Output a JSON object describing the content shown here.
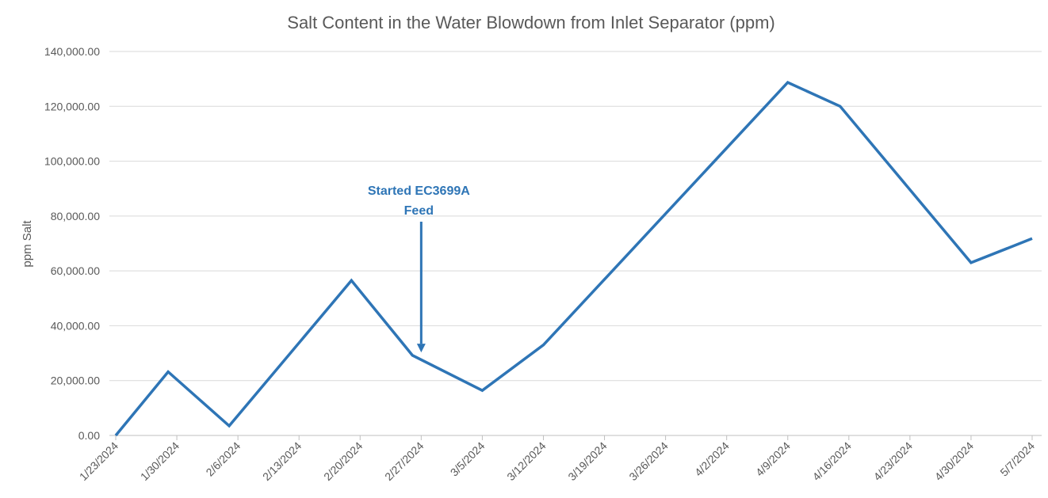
{
  "chart_data": {
    "type": "line",
    "title": "Salt Content in the Water Blowdown from Inlet Separator (ppm)",
    "xlabel": "",
    "ylabel": "ppm Salt",
    "ylim": [
      0,
      140000
    ],
    "y_ticks": [
      "0.00",
      "20,000.00",
      "40,000.00",
      "60,000.00",
      "80,000.00",
      "100,000.00",
      "120,000.00",
      "140,000.00"
    ],
    "y_tick_values": [
      0,
      20000,
      40000,
      60000,
      80000,
      100000,
      120000,
      140000
    ],
    "x_axis_type": "date",
    "xlim": [
      "1/23/2024",
      "5/7/2024"
    ],
    "x_ticks": [
      "1/23/2024",
      "1/30/2024",
      "2/6/2024",
      "2/13/2024",
      "2/20/2024",
      "2/27/2024",
      "3/5/2024",
      "3/12/2024",
      "3/19/2024",
      "3/26/2024",
      "4/2/2024",
      "4/9/2024",
      "4/16/2024",
      "4/23/2024",
      "4/30/2024",
      "5/7/2024"
    ],
    "grid": true,
    "legend": "none",
    "series": [
      {
        "color": "#2E75B6",
        "points": [
          {
            "x": "1/23/2024",
            "y": 0
          },
          {
            "x": "1/29/2024",
            "y": 23200
          },
          {
            "x": "2/5/2024",
            "y": 3500
          },
          {
            "x": "2/19/2024",
            "y": 56500
          },
          {
            "x": "2/26/2024",
            "y": 29200
          },
          {
            "x": "3/5/2024",
            "y": 16400
          },
          {
            "x": "3/12/2024",
            "y": 33000
          },
          {
            "x": "4/9/2024",
            "y": 128700
          },
          {
            "x": "4/15/2024",
            "y": 120000
          },
          {
            "x": "4/30/2024",
            "y": 63000
          },
          {
            "x": "5/7/2024",
            "y": 71800
          }
        ]
      }
    ],
    "annotations": [
      {
        "lines": [
          "Started EC3699A",
          "Feed"
        ],
        "arrow_to": {
          "x": "2/27/2024",
          "y": 30000
        },
        "color": "#2E75B6"
      }
    ]
  }
}
